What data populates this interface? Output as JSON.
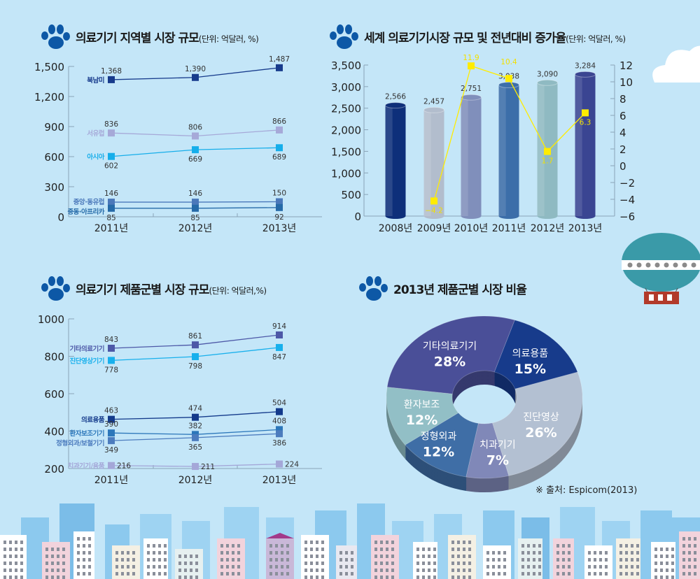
{
  "colors": {
    "background": "#c4e6f8",
    "paw": "#0d58a6",
    "growth_line": "#ffec00"
  },
  "titles": {
    "region": {
      "main": "의료기기 지역별 시장 규모",
      "unit": "(단위: 억달러, %)"
    },
    "world": {
      "main": "세계 의료기기시장 규모 및 전년대비 증가율",
      "unit": "(단위: 억달러, %)"
    },
    "product": {
      "main": "의료기기 제품군별 시장 규모",
      "unit": "(단위: 억달러,%)"
    },
    "share": {
      "main": "2013년 제품군별 시장 비율",
      "unit": ""
    }
  },
  "source": "※  출처: Espicom(2013)",
  "chart_data": [
    {
      "id": "region",
      "type": "line",
      "categories": [
        "2011년",
        "2012년",
        "2013년"
      ],
      "ylim": [
        0,
        1500
      ],
      "yticks": [
        "0",
        "300",
        "600",
        "900",
        "1,200",
        "1,500"
      ],
      "series": [
        {
          "name": "북남미",
          "values": [
            1368,
            1390,
            1487
          ],
          "labels": [
            "1,368",
            "1,390",
            "1,487"
          ],
          "color": "#173b8c"
        },
        {
          "name": "서유럽",
          "values": [
            836,
            806,
            866
          ],
          "labels": [
            "836",
            "806",
            "866"
          ],
          "color": "#a6a9d8"
        },
        {
          "name": "아시아",
          "values": [
            602,
            669,
            689
          ],
          "labels": [
            "602",
            "669",
            "689"
          ],
          "color": "#16aeea"
        },
        {
          "name": "중앙·동유럽",
          "values": [
            146,
            146,
            150
          ],
          "labels": [
            "146",
            "146",
            "150"
          ],
          "color": "#4a78ba"
        },
        {
          "name": "중동·아프리카",
          "values": [
            85,
            85,
            92
          ],
          "labels": [
            "85",
            "85",
            "92"
          ],
          "color": "#256aa8"
        }
      ]
    },
    {
      "id": "world",
      "type": "bar+line",
      "categories": [
        "2008년",
        "2009년",
        "2010년",
        "2011년",
        "2012년",
        "2013년"
      ],
      "ylim": [
        0,
        3500
      ],
      "yticks": [
        "0",
        "500",
        "1,000",
        "1,500",
        "2,000",
        "2,500",
        "3,000",
        "3,500"
      ],
      "y2lim": [
        -6,
        12
      ],
      "y2ticks": [
        "−6",
        "−4",
        "−2",
        "0",
        "2",
        "4",
        "6",
        "8",
        "10",
        "12"
      ],
      "bars": {
        "values": [
          2566,
          2457,
          2751,
          3038,
          3090,
          3284
        ],
        "labels": [
          "2,566",
          "2,457",
          "2,751",
          "3,038",
          "3,090",
          "3,284"
        ],
        "colors": [
          "#0e2f7a",
          "#b2bdcd",
          "#808fbb",
          "#3c6ea9",
          "#8fbac2",
          "#3a4592"
        ]
      },
      "line": {
        "x": [
          "2009년",
          "2010년",
          "2011년",
          "2012년",
          "2013년"
        ],
        "values": [
          -4.2,
          11.9,
          10.4,
          1.7,
          6.3
        ],
        "labels": [
          "−4.2",
          "11.9",
          "10.4",
          "1.7",
          "6.3"
        ]
      }
    },
    {
      "id": "product",
      "type": "line",
      "categories": [
        "2011년",
        "2012년",
        "2013년"
      ],
      "ylim": [
        200,
        1000
      ],
      "yticks": [
        "200",
        "400",
        "600",
        "800",
        "1000"
      ],
      "series": [
        {
          "name": "기타의료기기",
          "values": [
            843,
            861,
            914
          ],
          "labels": [
            "843",
            "861",
            "914"
          ],
          "color": "#4d58a7"
        },
        {
          "name": "진단영상기기",
          "values": [
            778,
            798,
            847
          ],
          "labels": [
            "778",
            "798",
            "847"
          ],
          "color": "#18b0ec"
        },
        {
          "name": "의료용품",
          "values": [
            463,
            474,
            504
          ],
          "labels": [
            "463",
            "474",
            "504"
          ],
          "color": "#133a8b"
        },
        {
          "name": "환자보조기기",
          "values": [
            390,
            382,
            408
          ],
          "labels": [
            "390",
            "382",
            "408"
          ],
          "color": "#2c77ba"
        },
        {
          "name": "정형외과/보철기기",
          "values": [
            349,
            365,
            386
          ],
          "labels": [
            "349",
            "365",
            "386"
          ],
          "color": "#4c7cbe"
        },
        {
          "name": "치과기기/용품",
          "values": [
            216,
            211,
            224
          ],
          "labels": [
            "216",
            "211",
            "224"
          ],
          "color": "#a4a7d8"
        }
      ]
    },
    {
      "id": "share",
      "type": "pie",
      "donut": true,
      "slices": [
        {
          "name": "의료용품",
          "value": 15,
          "label": "15%",
          "color": "#173b8b"
        },
        {
          "name": "진단영상",
          "value": 26,
          "label": "26%",
          "color": "#b3c0d2"
        },
        {
          "name": "치과기기",
          "value": 7,
          "label": "7%",
          "color": "#8088b8"
        },
        {
          "name": "정형외과",
          "value": 12,
          "label": "12%",
          "color": "#3f6ea6"
        },
        {
          "name": "환자보조",
          "value": 12,
          "label": "12%",
          "color": "#92bfc6"
        },
        {
          "name": "기타의료기기",
          "value": 28,
          "label": "28%",
          "color": "#4a4f98"
        }
      ]
    }
  ]
}
